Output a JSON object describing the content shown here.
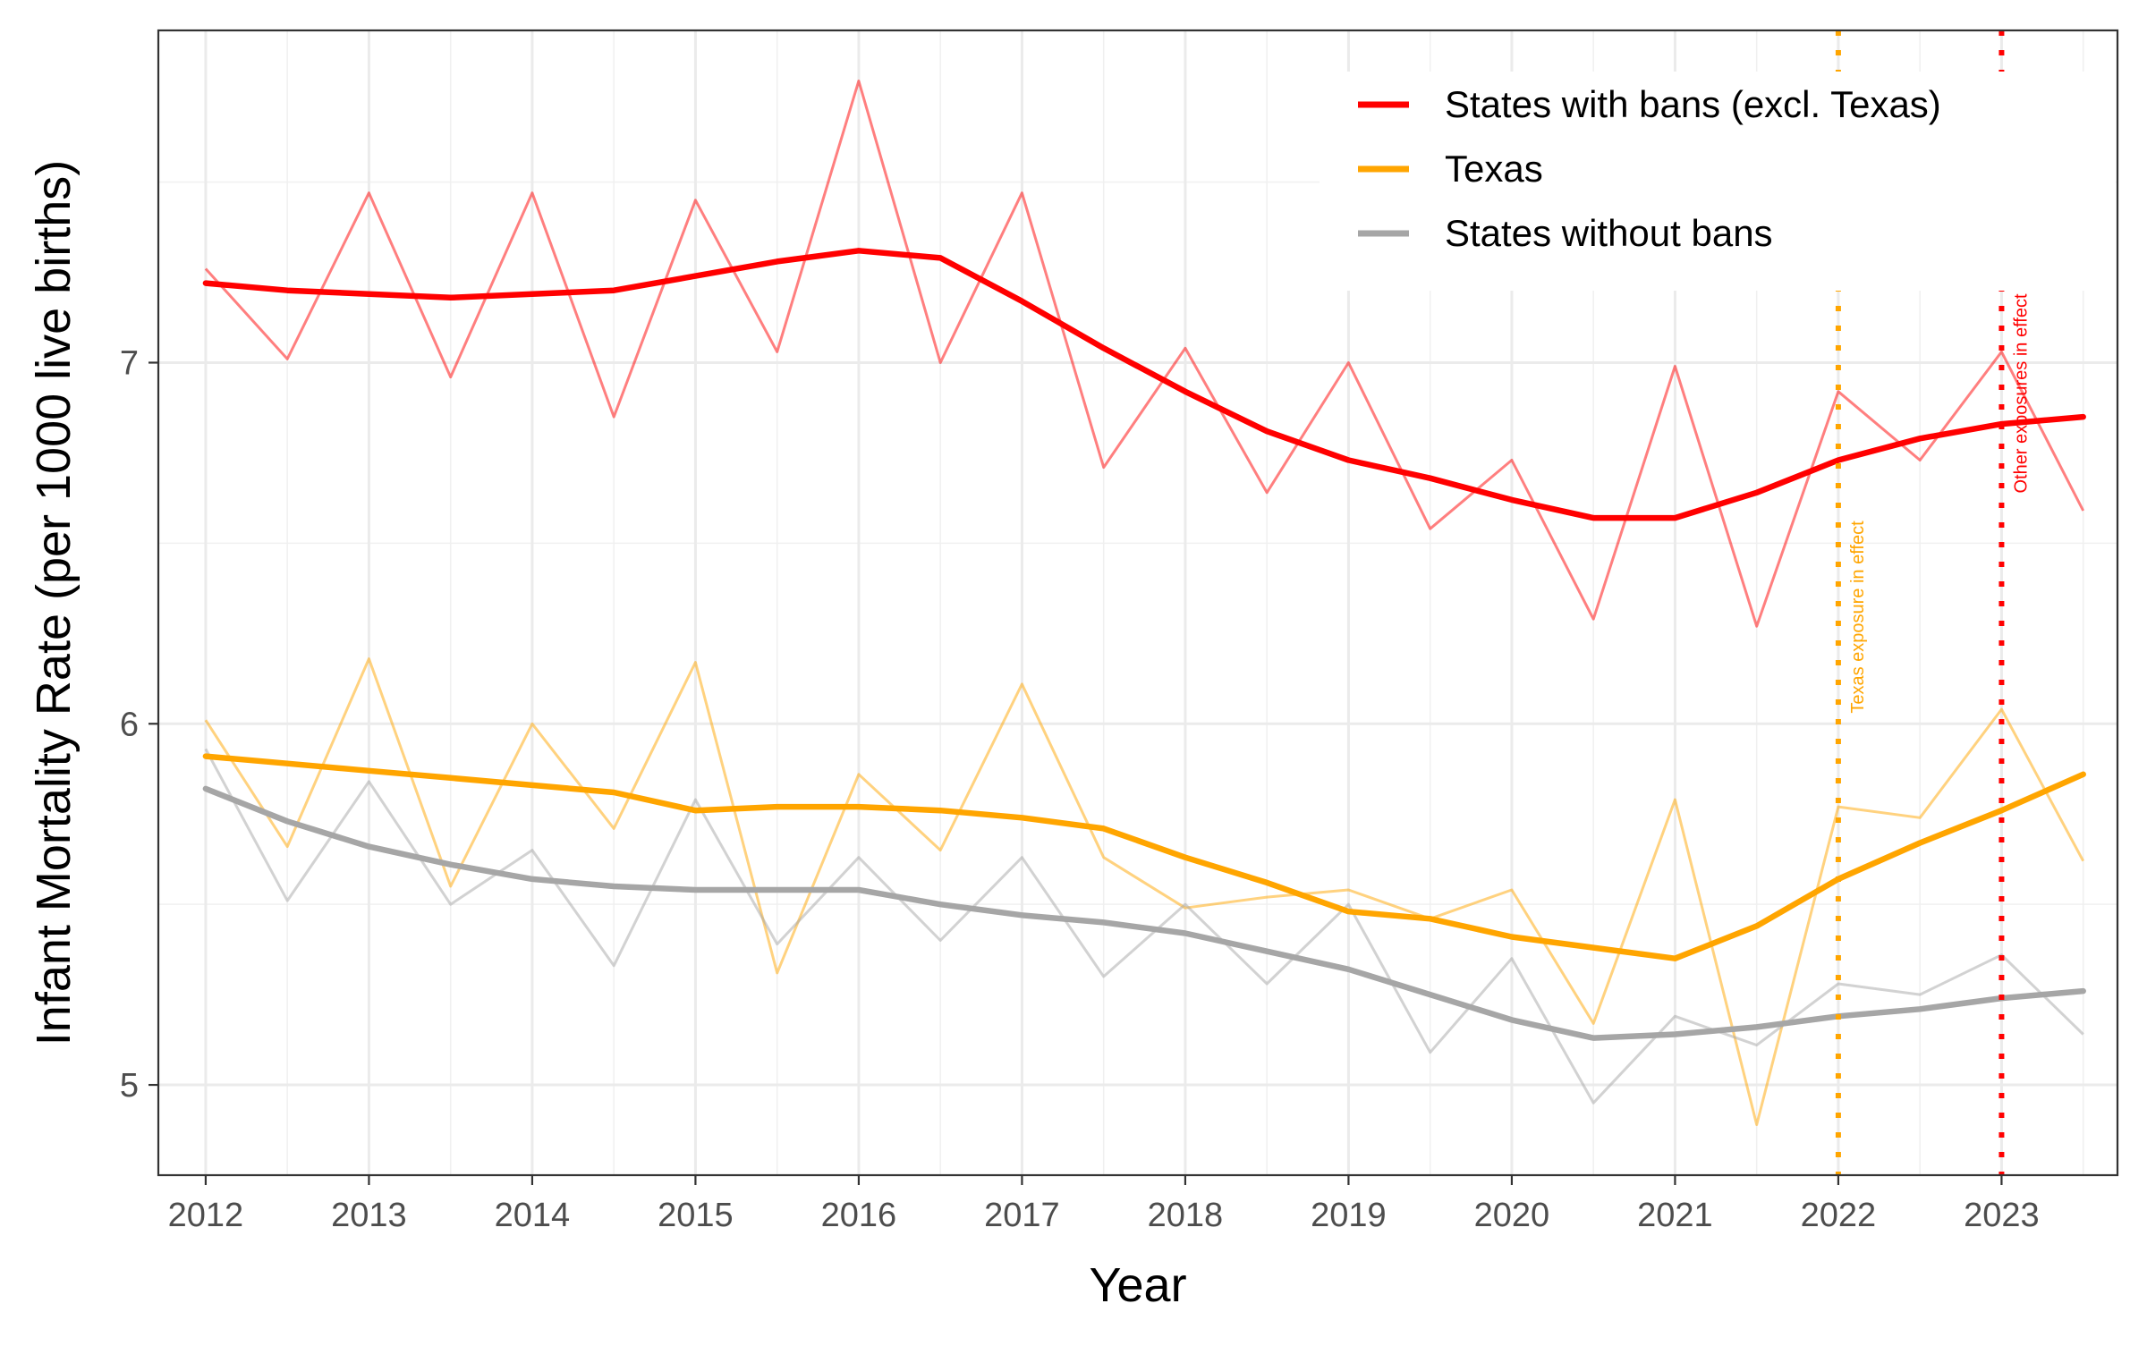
{
  "chart_data": {
    "type": "line",
    "title": "",
    "xlabel": "Year",
    "ylabel": "Infant Mortality Rate (per 1000 live births)",
    "x_ticks": [
      "2012",
      "2013",
      "2014",
      "2015",
      "2016",
      "2017",
      "2018",
      "2019",
      "2020",
      "2021",
      "2022",
      "2023"
    ],
    "y_ticks": [
      "5",
      "6",
      "7"
    ],
    "xlim": [
      2011.71,
      2023.71
    ],
    "ylim": [
      4.75,
      7.92
    ],
    "grid": true,
    "legend_position": "top-right",
    "x": [
      2012.0,
      2012.5,
      2013.0,
      2013.5,
      2014.0,
      2014.5,
      2015.0,
      2015.5,
      2016.0,
      2016.5,
      2017.0,
      2017.5,
      2018.0,
      2018.5,
      2019.0,
      2019.5,
      2020.0,
      2020.5,
      2021.0,
      2021.5,
      2022.0,
      2022.5,
      2023.0,
      2023.5
    ],
    "series": [
      {
        "name": "States with bans (excl. Texas)",
        "color": "#ff0000",
        "values": [
          7.26,
          7.01,
          7.47,
          6.96,
          7.47,
          6.85,
          7.45,
          7.03,
          7.78,
          7.0,
          7.47,
          6.71,
          7.04,
          6.64,
          7.0,
          6.54,
          6.73,
          6.29,
          6.99,
          6.27,
          6.92,
          6.73,
          7.03,
          6.59
        ],
        "smooth": [
          7.22,
          7.2,
          7.19,
          7.18,
          7.19,
          7.2,
          7.24,
          7.28,
          7.31,
          7.29,
          7.17,
          7.04,
          6.92,
          6.81,
          6.73,
          6.68,
          6.62,
          6.57,
          6.57,
          6.64,
          6.73,
          6.79,
          6.83,
          6.85
        ]
      },
      {
        "name": "Texas",
        "color": "#ffa500",
        "values": [
          6.01,
          5.66,
          6.18,
          5.55,
          6.0,
          5.71,
          6.17,
          5.31,
          5.86,
          5.65,
          6.11,
          5.63,
          5.49,
          5.52,
          5.54,
          5.46,
          5.54,
          5.17,
          5.79,
          4.89,
          5.77,
          5.74,
          6.04,
          5.62
        ],
        "smooth": [
          5.91,
          5.89,
          5.87,
          5.85,
          5.83,
          5.81,
          5.76,
          5.77,
          5.77,
          5.76,
          5.74,
          5.71,
          5.63,
          5.56,
          5.48,
          5.46,
          5.41,
          5.38,
          5.35,
          5.44,
          5.57,
          5.67,
          5.76,
          5.86
        ]
      },
      {
        "name": "States without bans",
        "color": "#a6a6a6",
        "values": [
          5.93,
          5.51,
          5.84,
          5.5,
          5.65,
          5.33,
          5.79,
          5.39,
          5.63,
          5.4,
          5.63,
          5.3,
          5.5,
          5.28,
          5.5,
          5.09,
          5.35,
          4.95,
          5.19,
          5.11,
          5.28,
          5.25,
          5.36,
          5.14
        ],
        "smooth": [
          5.82,
          5.73,
          5.66,
          5.61,
          5.57,
          5.55,
          5.54,
          5.54,
          5.54,
          5.5,
          5.47,
          5.45,
          5.42,
          5.37,
          5.32,
          5.25,
          5.18,
          5.13,
          5.14,
          5.16,
          5.19,
          5.21,
          5.24,
          5.26
        ]
      }
    ],
    "vlines": [
      {
        "x": 2022.0,
        "label": "Texas exposure in effect",
        "color": "#ffa500"
      },
      {
        "x": 2023.0,
        "label": "Other exposures in effect",
        "color": "#ff0000"
      }
    ]
  }
}
